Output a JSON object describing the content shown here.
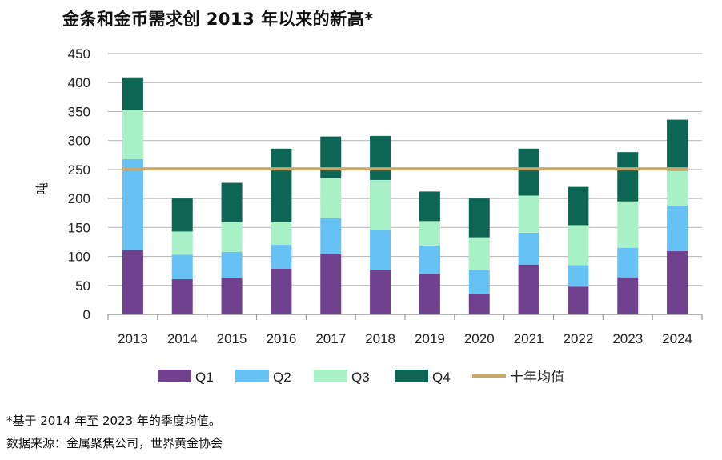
{
  "title": "金条和金币需求创 2013 年以来的新高*",
  "footnote": "*基于 2014 年至 2023 年的季度均值。",
  "source": "数据来源：金属聚焦公司，世界黄金协会",
  "chart_data": {
    "type": "bar",
    "stacked": true,
    "categories": [
      "2013",
      "2014",
      "2015",
      "2016",
      "2017",
      "2018",
      "2019",
      "2020",
      "2021",
      "2022",
      "2023",
      "2024"
    ],
    "series": [
      {
        "name": "Q1",
        "color": "#70418f",
        "values": [
          111,
          61,
          63,
          79,
          104,
          76,
          70,
          35,
          86,
          48,
          64,
          109
        ]
      },
      {
        "name": "Q2",
        "color": "#66c2f4",
        "values": [
          157,
          42,
          45,
          41,
          62,
          69,
          49,
          41,
          55,
          37,
          51,
          79
        ]
      },
      {
        "name": "Q3",
        "color": "#a8f0c6",
        "values": [
          84,
          40,
          51,
          39,
          69,
          87,
          42,
          57,
          64,
          69,
          80,
          60
        ]
      },
      {
        "name": "Q4",
        "color": "#0d6654",
        "values": [
          57,
          57,
          68,
          127,
          72,
          76,
          51,
          67,
          81,
          66,
          85,
          88
        ]
      }
    ],
    "average_line": {
      "name": "十年均值",
      "value": 251,
      "color": "#c9a96b"
    },
    "ylabel": "吨",
    "ylim": [
      0,
      450
    ],
    "yticks": [
      0,
      50,
      100,
      150,
      200,
      250,
      300,
      350,
      400,
      450
    ],
    "grid": true,
    "legend_position": "bottom"
  }
}
